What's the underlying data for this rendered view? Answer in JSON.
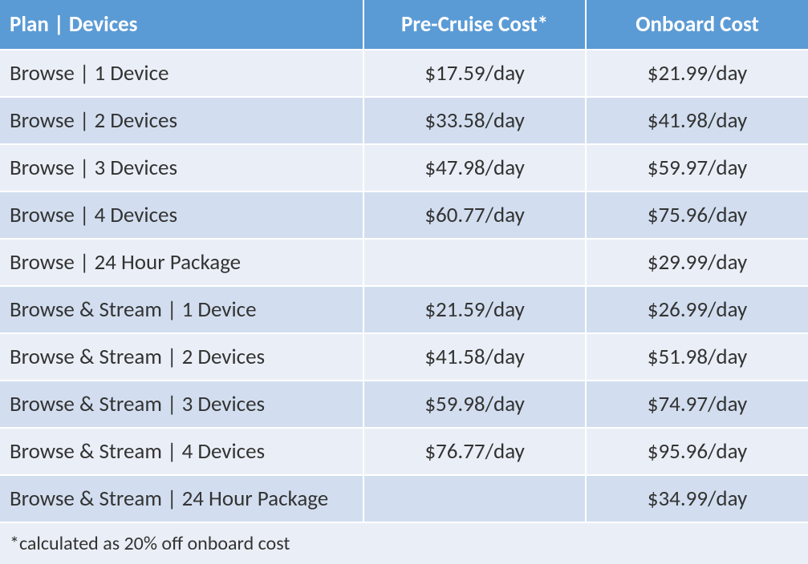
{
  "table": {
    "type": "table",
    "header_bg_color": "#5b9bd5",
    "header_text_color": "#ffffff",
    "row_alt_color_1": "#eaeff7",
    "row_alt_color_2": "#d2deef",
    "border_color": "#ffffff",
    "font_family": "Calibri, Arial, sans-serif",
    "header_fontsize": 27,
    "body_fontsize": 27,
    "footer_fontsize": 24,
    "column_widths_pct": [
      45,
      27.5,
      27.5
    ],
    "column_align": [
      "left",
      "center",
      "center"
    ],
    "columns": [
      "Plan | Devices",
      "Pre-Cruise Cost*",
      "Onboard Cost"
    ],
    "rows": [
      [
        "Browse | 1 Device",
        "$17.59/day",
        "$21.99/day"
      ],
      [
        "Browse | 2 Devices",
        "$33.58/day",
        "$41.98/day"
      ],
      [
        "Browse | 3 Devices",
        "$47.98/day",
        "$59.97/day"
      ],
      [
        "Browse | 4 Devices",
        "$60.77/day",
        "$75.96/day"
      ],
      [
        "Browse | 24 Hour Package",
        "",
        "$29.99/day"
      ],
      [
        "Browse & Stream | 1 Device",
        "$21.59/day",
        "$26.99/day"
      ],
      [
        "Browse & Stream | 2 Devices",
        "$41.58/day",
        "$51.98/day"
      ],
      [
        "Browse & Stream | 3 Devices",
        "$59.98/day",
        "$74.97/day"
      ],
      [
        "Browse & Stream | 4 Devices",
        "$76.77/day",
        "$95.96/day"
      ],
      [
        "Browse & Stream | 24 Hour Package",
        "",
        "$34.99/day"
      ]
    ],
    "footnote": "*calculated as 20% off onboard cost"
  }
}
